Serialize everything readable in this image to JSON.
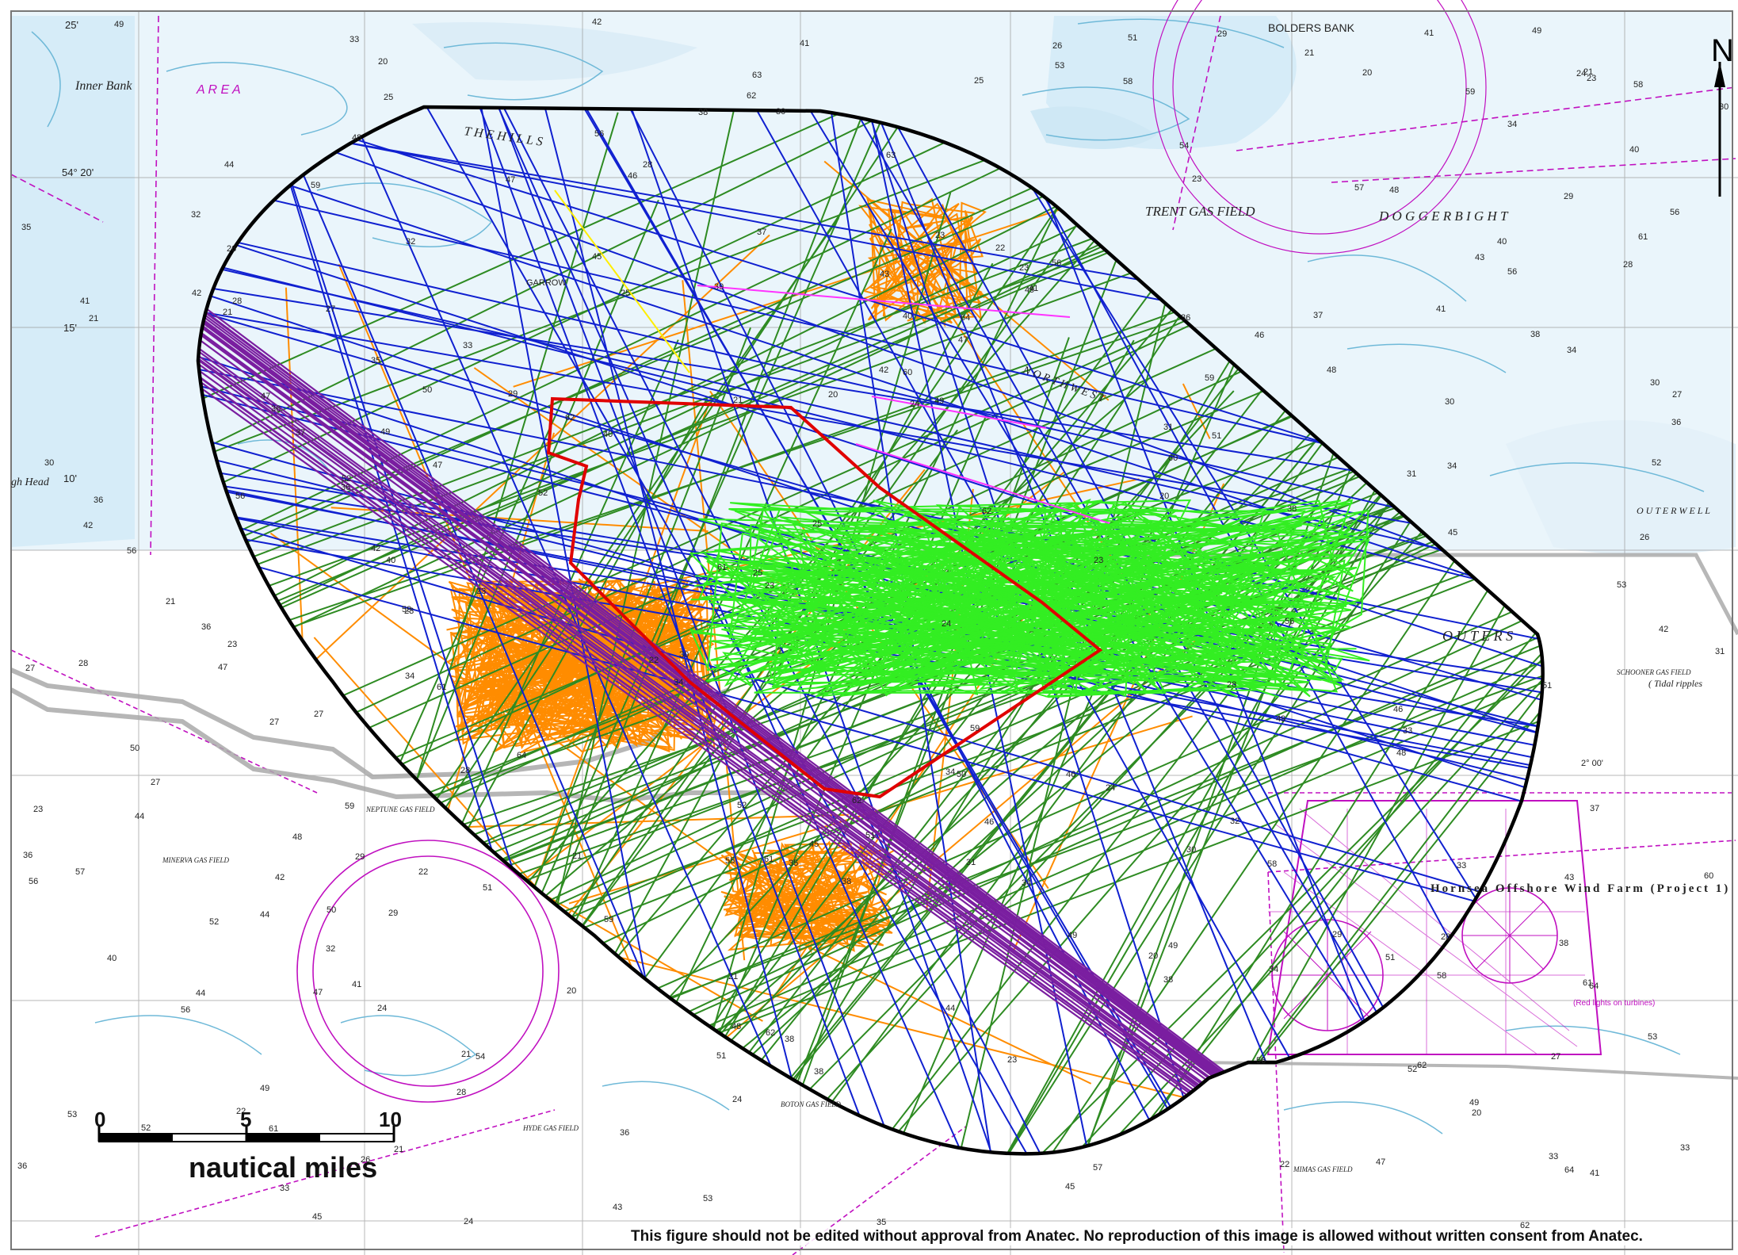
{
  "map": {
    "disclaimer": "This figure should not be edited without approval from Anatec. No reproduction of this image is allowed without written consent from Anatec.",
    "north_label": "N",
    "scale_bar": {
      "units": "nautical miles",
      "ticks": [
        "0",
        "5",
        "10"
      ]
    },
    "chart_labels": {
      "inner_bank": "Inner Bank",
      "area": "A R E A",
      "the_hills": "T H E   H I L L S",
      "bolders_bank": "BOLDERS BANK",
      "trent_gas_field": "TRENT GAS FIELD",
      "dogger_bight": "D O G G E R   B I G H T",
      "north_west": "N O R T H   W E S T",
      "outer_silver": "O U T E R   S",
      "outer_well": "O U T E R   W E L L",
      "garrow": "GARROW",
      "neptune": "NEPTUNE GAS FIELD",
      "minerva": "MINERVA GAS FIELD",
      "hornsea_1": "Hornsea Offshore Wind Farm (Project 1)",
      "schooner": "SCHOONER GAS FIELD",
      "tidal_ripples": "( Tidal ripples",
      "gh_head": "gh Head",
      "lat_54_20": "54° 20'",
      "lat_54_15": "15'",
      "lat_54_10": "10'",
      "lon_25": "25'",
      "lon_2_00": "2° 00'",
      "red_lights": "(Red lights on turbines)",
      "mimas": "MIMAS GAS FIELD",
      "hyde": "HYDE GAS FIELD",
      "boton": "BOTON GAS FIELD"
    },
    "legend_colors": {
      "study_area_outline": "#000000",
      "site_boundary": "#e00000",
      "cargo_tracks": "#2e8b22",
      "tanker_tracks": "#1020d0",
      "fishing_tracks": "#ff8c00",
      "oil_gas_tracks": "#7a1ea0",
      "wind_farm_tracks": "#33ee22",
      "other_tracks": "#ff33ff",
      "passenger_tracks": "#ffee00",
      "pipelines": "#aaaaaa",
      "chart_magenta": "#c010c0",
      "chart_depth_contour": "#6fb9d8"
    }
  }
}
